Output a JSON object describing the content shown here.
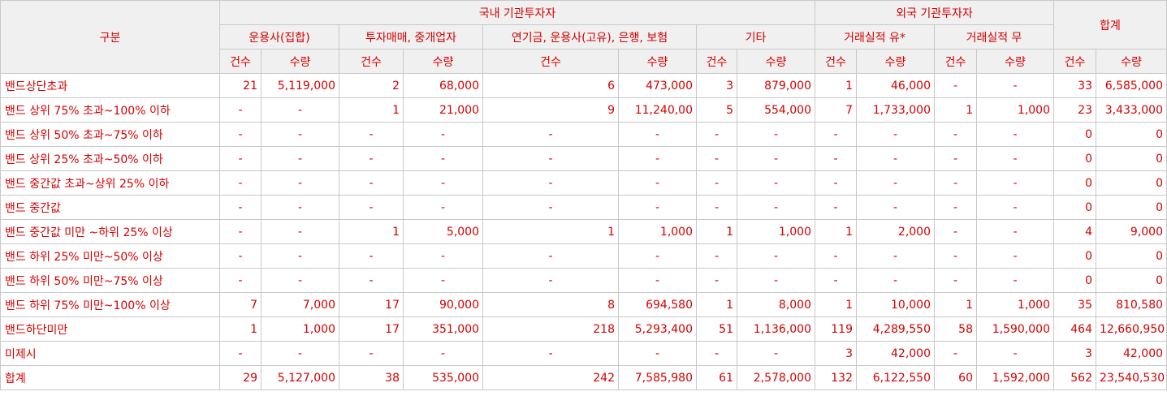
{
  "header": {
    "category": "구분",
    "domestic": "국내 기관투자자",
    "foreign": "외국 기관투자자",
    "total": "합계",
    "groups": [
      "운용사(집합)",
      "투자매매, 중개업자",
      "연기금, 운용사(고유), 은행, 보험",
      "기타",
      "거래실적 유*",
      "거래실적 무"
    ],
    "count": "건수",
    "amount": "수량"
  },
  "rows": [
    {
      "label": "밴드상단초과",
      "cells": [
        "21",
        "5,119,000",
        "2",
        "68,000",
        "6",
        "473,000",
        "3",
        "879,000",
        "1",
        "46,000",
        "-",
        "-",
        "33",
        "6,585,000"
      ]
    },
    {
      "label": "밴드 상위 75% 초과~100% 이하",
      "cells": [
        "-",
        "-",
        "1",
        "21,000",
        "9",
        "11,240,00",
        "5",
        "554,000",
        "7",
        "1,733,000",
        "1",
        "1,000",
        "23",
        "3,433,000"
      ]
    },
    {
      "label": "밴드 상위 50% 초과~75% 이하",
      "cells": [
        "-",
        "-",
        "-",
        "-",
        "-",
        "-",
        "-",
        "-",
        "-",
        "-",
        "-",
        "-",
        "0",
        "0"
      ]
    },
    {
      "label": "밴드 상위 25% 초과~50% 이하",
      "cells": [
        "-",
        "-",
        "-",
        "-",
        "-",
        "-",
        "-",
        "-",
        "-",
        "-",
        "-",
        "-",
        "0",
        "0"
      ]
    },
    {
      "label": "밴드 중간값 초과~상위 25% 이하",
      "cells": [
        "-",
        "-",
        "-",
        "-",
        "-",
        "-",
        "-",
        "-",
        "-",
        "-",
        "-",
        "-",
        "0",
        "0"
      ]
    },
    {
      "label": "밴드 중간값",
      "cells": [
        "-",
        "-",
        "-",
        "-",
        "-",
        "-",
        "-",
        "-",
        "-",
        "-",
        "-",
        "-",
        "0",
        "0"
      ]
    },
    {
      "label": "밴드 중간값 미만 ~하위 25% 이상",
      "cells": [
        "-",
        "-",
        "1",
        "5,000",
        "1",
        "1,000",
        "1",
        "1,000",
        "1",
        "2,000",
        "-",
        "-",
        "4",
        "9,000"
      ]
    },
    {
      "label": "밴드 하위 25% 미만~50% 이상",
      "cells": [
        "-",
        "-",
        "-",
        "-",
        "-",
        "-",
        "-",
        "-",
        "-",
        "-",
        "-",
        "-",
        "0",
        "0"
      ]
    },
    {
      "label": "밴드 하위 50% 미만~75% 이상",
      "cells": [
        "-",
        "-",
        "-",
        "-",
        "-",
        "-",
        "-",
        "-",
        "-",
        "-",
        "-",
        "-",
        "0",
        "0"
      ]
    },
    {
      "label": "밴드 하위 75% 미만~100% 이상",
      "cells": [
        "7",
        "7,000",
        "17",
        "90,000",
        "8",
        "694,580",
        "1",
        "8,000",
        "1",
        "10,000",
        "1",
        "1,000",
        "35",
        "810,580"
      ]
    },
    {
      "label": "밴드하단미만",
      "cells": [
        "1",
        "1,000",
        "17",
        "351,000",
        "218",
        "5,293,400",
        "51",
        "1,136,000",
        "119",
        "4,289,550",
        "58",
        "1,590,000",
        "464",
        "12,660,950"
      ]
    },
    {
      "label": "미제시",
      "cells": [
        "-",
        "-",
        "-",
        "-",
        "-",
        "-",
        "-",
        "-",
        "3",
        "42,000",
        "-",
        "-",
        "3",
        "42,000"
      ]
    },
    {
      "label": "합계",
      "cells": [
        "29",
        "5,127,000",
        "38",
        "535,000",
        "242",
        "7,585,980",
        "61",
        "2,578,000",
        "132",
        "6,122,550",
        "60",
        "1,592,000",
        "562",
        "23,540,530"
      ]
    }
  ],
  "colors": {
    "text": "#d40000",
    "header_bg": "#f0f0f0",
    "border": "#c8c8c8"
  }
}
